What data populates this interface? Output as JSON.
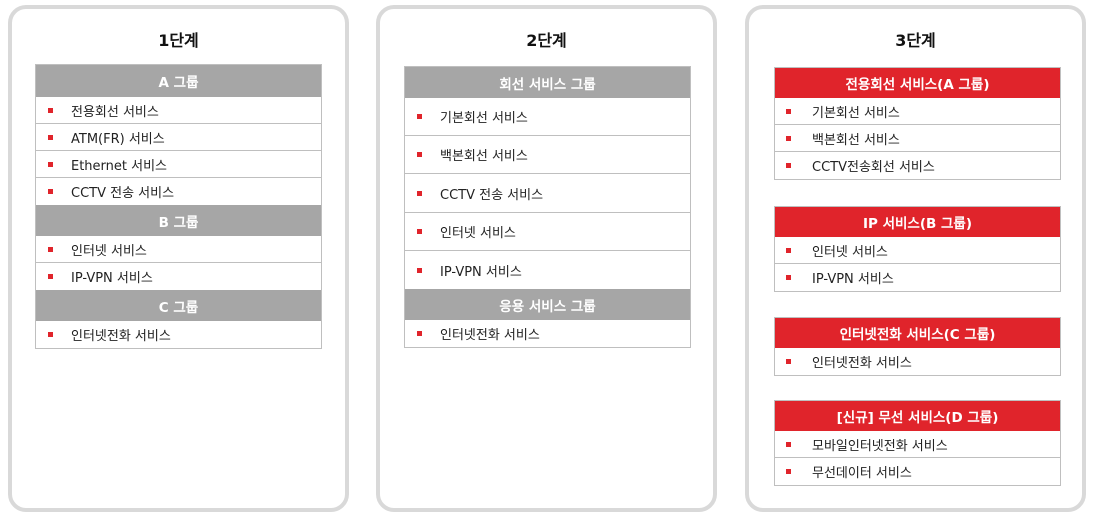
{
  "colors": {
    "accent_red": "#e0242b",
    "header_gray": "#a6a6a6",
    "stage_border": "#d9d9d9"
  },
  "stages": [
    {
      "title": "1단계",
      "groups": [
        {
          "header": "A 그룹",
          "items": [
            "전용회선 서비스",
            "ATM(FR) 서비스",
            "Ethernet 서비스",
            "CCTV 전송 서비스"
          ]
        },
        {
          "header": "B 그룹",
          "items": [
            "인터넷 서비스",
            "IP-VPN 서비스"
          ]
        },
        {
          "header": "C 그룹",
          "items": [
            "인터넷전화 서비스"
          ]
        }
      ]
    },
    {
      "title": "2단계",
      "groups": [
        {
          "header": "회선 서비스 그룹",
          "items": [
            "기본회선 서비스",
            "백본회선 서비스",
            "CCTV 전송 서비스",
            "인터넷 서비스",
            "IP-VPN 서비스"
          ]
        },
        {
          "header": "응용 서비스 그룹",
          "items": [
            "인터넷전화 서비스"
          ]
        }
      ]
    },
    {
      "title": "3단계",
      "groups": [
        {
          "header": "전용회선 서비스(A 그룹)",
          "items": [
            "기본회선 서비스",
            "백본회선 서비스",
            "CCTV전송회선 서비스"
          ]
        },
        {
          "header": "IP 서비스(B 그룹)",
          "items": [
            "인터넷 서비스",
            "IP-VPN 서비스"
          ]
        },
        {
          "header": "인터넷전화 서비스(C 그룹)",
          "items": [
            "인터넷전화 서비스"
          ]
        },
        {
          "header": "[신규] 무선 서비스(D 그룹)",
          "items": [
            "모바일인터넷전화 서비스",
            "무선데이터 서비스"
          ]
        }
      ]
    }
  ]
}
